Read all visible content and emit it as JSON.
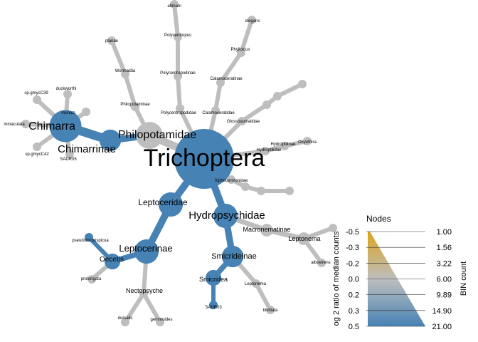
{
  "colors": {
    "blue": "#4682b4",
    "grey": "#bebebe",
    "gold": "#daa520"
  },
  "legend": {
    "title": "Nodes",
    "left_axis_title": "og 2 ratio of median counts",
    "right_axis_title": "BIN count",
    "left_ticks": [
      "-0.5",
      "-0.3",
      "-0.2",
      "0.0",
      "0.2",
      "0.3",
      "0.5"
    ],
    "right_ticks": [
      "1.00",
      "1.56",
      "3.22",
      "6.00",
      "9.89",
      "14.90",
      "21.00"
    ]
  },
  "nodes": [
    {
      "id": "root",
      "label": "Trichoptera",
      "color": "blue",
      "size": 21
    },
    {
      "id": "philopotamidae",
      "label": "Philopotamidae",
      "color": "grey",
      "size": 7
    },
    {
      "id": "chimarrinae",
      "label": "Chimarrinae",
      "color": "blue",
      "size": 5
    },
    {
      "id": "chimarra",
      "label": "Chimarra",
      "color": "blue",
      "size": 9
    },
    {
      "id": "mmaculata",
      "label": "mmaculata",
      "color": "grey",
      "size": 1
    },
    {
      "id": "sp_gmyc39",
      "label": "sp.gmycC39",
      "color": "grey",
      "size": 1
    },
    {
      "id": "duckworthi",
      "label": "duckworthi",
      "color": "grey",
      "size": 1
    },
    {
      "id": "munozi",
      "label": "munozi",
      "color": "grey",
      "size": 1
    },
    {
      "id": "sp_gmyc42",
      "label": "sp.gmycC42",
      "color": "grey",
      "size": 1
    },
    {
      "id": "sadr05",
      "label": "SADR05",
      "color": "grey",
      "size": 1
    },
    {
      "id": "philopotaminae",
      "label": "Philopotaminae",
      "color": "grey",
      "size": 1
    },
    {
      "id": "wormaldia",
      "label": "Wormaldia",
      "color": "grey",
      "size": 1
    },
    {
      "id": "planae",
      "label": "planae",
      "color": "grey",
      "size": 1
    },
    {
      "id": "polycentropodidae",
      "label": "Polycentropodidae",
      "color": "grey",
      "size": 1
    },
    {
      "id": "polycentropodinae",
      "label": "Polycentropodinae",
      "color": "grey",
      "size": 1
    },
    {
      "id": "polycentropus",
      "label": "Polycentropus",
      "color": "grey",
      "size": 1
    },
    {
      "id": "altmani",
      "label": "altmani",
      "color": "grey",
      "size": 1
    },
    {
      "id": "calamoceratidae",
      "label": "Calamoceratidae",
      "color": "grey",
      "size": 1
    },
    {
      "id": "calamoceratinae",
      "label": "Calamoceratinae",
      "color": "grey",
      "size": 1
    },
    {
      "id": "phylloicus",
      "label": "Phylloicus",
      "color": "grey",
      "size": 1
    },
    {
      "id": "elegans",
      "label": "elegans",
      "color": "grey",
      "size": 1
    },
    {
      "id": "glossosomatidae",
      "label": "Glossosomatidae",
      "color": "grey",
      "size": 1
    },
    {
      "id": "gl2",
      "label": "",
      "color": "grey",
      "size": 1
    },
    {
      "id": "gl3",
      "label": "",
      "color": "grey",
      "size": 1
    },
    {
      "id": "gl4",
      "label": "",
      "color": "grey",
      "size": 1
    },
    {
      "id": "hydroptilidae",
      "label": "Hydroptilidae",
      "color": "grey",
      "size": 1
    },
    {
      "id": "hydroptilinae",
      "label": "Hydroptilinae",
      "color": "grey",
      "size": 1
    },
    {
      "id": "oxyethira",
      "label": "Oxyethira",
      "color": "grey",
      "size": 1
    },
    {
      "id": "xiphocentronidae",
      "label": "Xiphocentronidae",
      "color": "grey",
      "size": 1
    },
    {
      "id": "xi2",
      "label": "",
      "color": "grey",
      "size": 1
    },
    {
      "id": "xi3",
      "label": "",
      "color": "grey",
      "size": 1
    },
    {
      "id": "xi4",
      "label": "",
      "color": "grey",
      "size": 1
    },
    {
      "id": "leptoceridae",
      "label": "Leptoceridae",
      "color": "blue",
      "size": 6
    },
    {
      "id": "leptocerinae",
      "label": "Leptocerinae",
      "color": "blue",
      "size": 6
    },
    {
      "id": "oecetis",
      "label": "Oecetis",
      "color": "blue",
      "size": 3
    },
    {
      "id": "pseudoinconspicua",
      "label": "pseudoinconspicua",
      "color": "blue",
      "size": 1
    },
    {
      "id": "prolongata",
      "label": "prolongata",
      "color": "grey",
      "size": 1
    },
    {
      "id": "nectopsyche",
      "label": "Nectopsyche",
      "color": "grey",
      "size": 1
    },
    {
      "id": "dorsalis",
      "label": "dorsalis",
      "color": "grey",
      "size": 1
    },
    {
      "id": "gemmoides",
      "label": "gemmoides",
      "color": "grey",
      "size": 1
    },
    {
      "id": "hydropsychidae",
      "label": "Hydropsychidae",
      "color": "blue",
      "size": 6
    },
    {
      "id": "macronematinae",
      "label": "Macronematinae",
      "color": "grey",
      "size": 2
    },
    {
      "id": "leptonema",
      "label": "Leptonema",
      "color": "grey",
      "size": 2
    },
    {
      "id": "albovirens",
      "label": "albovirens",
      "color": "grey",
      "size": 1
    },
    {
      "id": "lp2",
      "label": "",
      "color": "grey",
      "size": 1
    },
    {
      "id": "smicridelnae",
      "label": "Smicridelnae",
      "color": "blue",
      "size": 5
    },
    {
      "id": "smicridea",
      "label": "Smicridea",
      "color": "blue",
      "size": 3
    },
    {
      "id": "sadr03",
      "label": "SADR03",
      "color": "blue",
      "size": 1
    },
    {
      "id": "leptonema2",
      "label": "Leptonema",
      "color": "grey",
      "size": 1
    },
    {
      "id": "bivittata",
      "label": "bivittata",
      "color": "grey",
      "size": 1
    }
  ],
  "edges": [
    {
      "from": "root",
      "to": "philopotamidae",
      "color": "grey"
    },
    {
      "from": "philopotamidae",
      "to": "chimarrinae",
      "color": "blue"
    },
    {
      "from": "chimarrinae",
      "to": "chimarra",
      "color": "blue"
    },
    {
      "from": "chimarra",
      "to": "mmaculata",
      "color": "grey"
    },
    {
      "from": "chimarra",
      "to": "sp_gmyc39",
      "color": "grey"
    },
    {
      "from": "chimarra",
      "to": "duckworthi",
      "color": "grey"
    },
    {
      "from": "chimarra",
      "to": "munozi",
      "color": "grey"
    },
    {
      "from": "chimarra",
      "to": "sp_gmyc42",
      "color": "grey"
    },
    {
      "from": "chimarra",
      "to": "sadr05",
      "color": "grey"
    },
    {
      "from": "philopotamidae",
      "to": "philopotaminae",
      "color": "grey"
    },
    {
      "from": "philopotaminae",
      "to": "wormaldia",
      "color": "grey"
    },
    {
      "from": "wormaldia",
      "to": "planae",
      "color": "grey"
    },
    {
      "from": "root",
      "to": "polycentropodidae",
      "color": "grey"
    },
    {
      "from": "polycentropodidae",
      "to": "polycentropodinae",
      "color": "grey"
    },
    {
      "from": "polycentropodinae",
      "to": "polycentropus",
      "color": "grey"
    },
    {
      "from": "polycentropus",
      "to": "altmani",
      "color": "grey"
    },
    {
      "from": "root",
      "to": "calamoceratidae",
      "color": "grey"
    },
    {
      "from": "calamoceratidae",
      "to": "calamoceratinae",
      "color": "grey"
    },
    {
      "from": "calamoceratinae",
      "to": "phylloicus",
      "color": "grey"
    },
    {
      "from": "phylloicus",
      "to": "elegans",
      "color": "grey"
    },
    {
      "from": "root",
      "to": "glossosomatidae",
      "color": "grey"
    },
    {
      "from": "glossosomatidae",
      "to": "gl2",
      "color": "grey"
    },
    {
      "from": "gl2",
      "to": "gl3",
      "color": "grey"
    },
    {
      "from": "gl3",
      "to": "gl4",
      "color": "grey"
    },
    {
      "from": "root",
      "to": "hydroptilidae",
      "color": "grey"
    },
    {
      "from": "hydroptilidae",
      "to": "hydroptilinae",
      "color": "grey"
    },
    {
      "from": "hydroptilinae",
      "to": "oxyethira",
      "color": "grey"
    },
    {
      "from": "root",
      "to": "xiphocentronidae",
      "color": "grey"
    },
    {
      "from": "xiphocentronidae",
      "to": "xi2",
      "color": "grey"
    },
    {
      "from": "xi2",
      "to": "xi3",
      "color": "grey"
    },
    {
      "from": "xi3",
      "to": "xi4",
      "color": "grey"
    },
    {
      "from": "root",
      "to": "leptoceridae",
      "color": "blue"
    },
    {
      "from": "leptoceridae",
      "to": "leptocerinae",
      "color": "blue"
    },
    {
      "from": "leptocerinae",
      "to": "oecetis",
      "color": "blue"
    },
    {
      "from": "oecetis",
      "to": "pseudoinconspicua",
      "color": "blue"
    },
    {
      "from": "oecetis",
      "to": "prolongata",
      "color": "grey"
    },
    {
      "from": "leptocerinae",
      "to": "nectopsyche",
      "color": "grey"
    },
    {
      "from": "nectopsyche",
      "to": "dorsalis",
      "color": "grey"
    },
    {
      "from": "nectopsyche",
      "to": "gemmoides",
      "color": "grey"
    },
    {
      "from": "root",
      "to": "hydropsychidae",
      "color": "blue"
    },
    {
      "from": "hydropsychidae",
      "to": "macronematinae",
      "color": "grey"
    },
    {
      "from": "macronematinae",
      "to": "leptonema",
      "color": "grey"
    },
    {
      "from": "leptonema",
      "to": "albovirens",
      "color": "grey"
    },
    {
      "from": "leptonema",
      "to": "lp2",
      "color": "grey"
    },
    {
      "from": "hydropsychidae",
      "to": "smicridelnae",
      "color": "blue"
    },
    {
      "from": "smicridelnae",
      "to": "smicridea",
      "color": "blue"
    },
    {
      "from": "smicridea",
      "to": "sadr03",
      "color": "blue"
    },
    {
      "from": "smicridelnae",
      "to": "leptonema2",
      "color": "grey"
    },
    {
      "from": "leptonema2",
      "to": "bivittata",
      "color": "grey"
    }
  ]
}
